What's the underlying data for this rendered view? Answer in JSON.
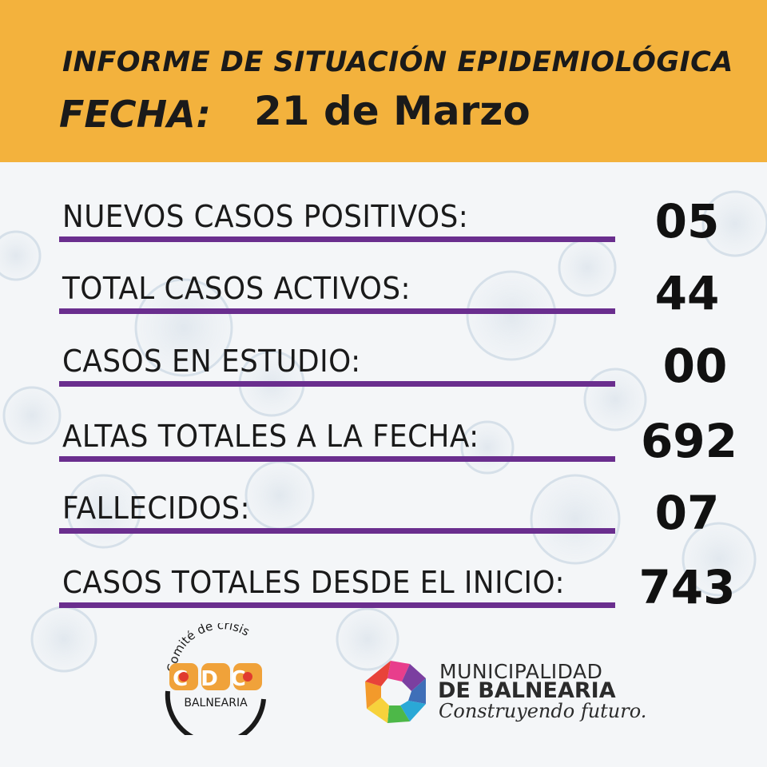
{
  "header": {
    "title": "INFORME DE SITUACIÓN EPIDEMIOLÓGICA",
    "date_label": "FECHA:",
    "date_value": "21 de Marzo"
  },
  "stats": [
    {
      "label": "NUEVOS CASOS POSITIVOS:",
      "value": "05"
    },
    {
      "label": "TOTAL CASOS ACTIVOS:",
      "value": "44"
    },
    {
      "label": "CASOS EN ESTUDIO:",
      "value": "00"
    },
    {
      "label": "ALTAS TOTALES A LA FECHA:",
      "value": "692"
    },
    {
      "label": "FALLECIDOS:",
      "value": "07"
    },
    {
      "label": "CASOS TOTALES DESDE EL INICIO:",
      "value": "743"
    }
  ],
  "logos": {
    "cdc": {
      "arc_text": "Comité de crisis",
      "acronym": "CDC",
      "subtitle": "BALNEARIA"
    },
    "municipality": {
      "line1": "MUNICIPALIDAD",
      "line2": "DE BALNEARIA",
      "slogan": "Construyendo futuro."
    }
  },
  "colors": {
    "header_bg": "#f3b23d",
    "underline": "#6a2e8e",
    "cdc_orange": "#f0a23a",
    "cdc_red": "#e03a2f",
    "background": "#f4f6f8"
  }
}
